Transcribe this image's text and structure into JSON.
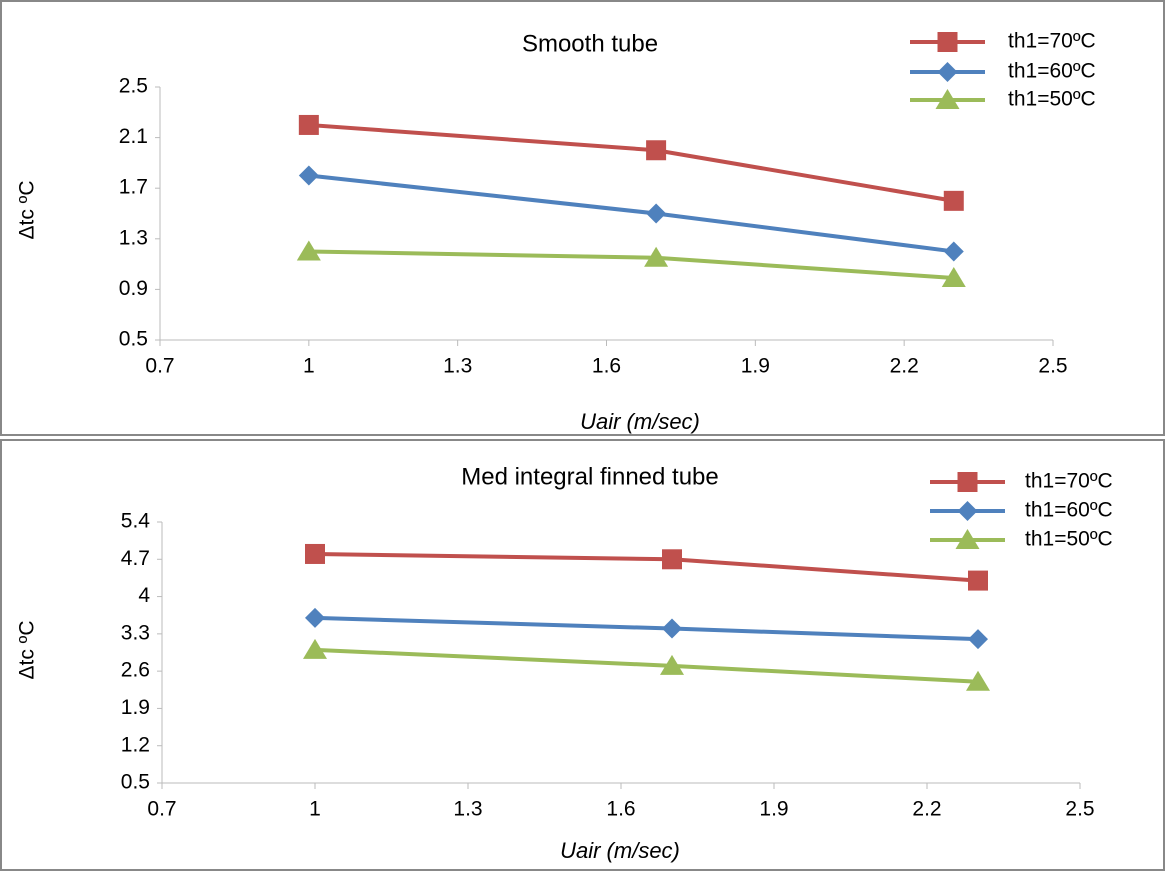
{
  "chart_data": [
    {
      "type": "line",
      "title": "Smooth tube",
      "xlabel": "Uair (m/sec)",
      "ylabel": "Δtc ºC",
      "x": [
        1,
        1.7,
        2.3
      ],
      "series": [
        {
          "name": "th1=70ºC",
          "color": "#c0504d",
          "marker": "square",
          "values": [
            2.2,
            2.0,
            1.6
          ]
        },
        {
          "name": "th1=60ºC",
          "color": "#4f81bd",
          "marker": "diamond",
          "values": [
            1.8,
            1.5,
            1.2
          ]
        },
        {
          "name": "th1=50ºC",
          "color": "#9bbb59",
          "marker": "triangle",
          "values": [
            1.2,
            1.15,
            0.99
          ]
        }
      ],
      "xlim": [
        0.7,
        2.5
      ],
      "xticks": [
        0.7,
        1,
        1.3,
        1.6,
        1.9,
        2.2,
        2.5
      ],
      "ylim": [
        0.5,
        2.5
      ],
      "yticks": [
        0.5,
        0.9,
        1.3,
        1.7,
        2.1,
        2.5
      ],
      "legend": "upper right"
    },
    {
      "type": "line",
      "title": "Med integral finned tube",
      "xlabel": "Uair (m/sec)",
      "ylabel": "Δtc ºC",
      "x": [
        1,
        1.7,
        2.3
      ],
      "series": [
        {
          "name": "th1=70ºC",
          "color": "#c0504d",
          "marker": "square",
          "values": [
            4.8,
            4.7,
            4.3
          ]
        },
        {
          "name": "th1=60ºC",
          "color": "#4f81bd",
          "marker": "diamond",
          "values": [
            3.6,
            3.4,
            3.2
          ]
        },
        {
          "name": "th1=50ºC",
          "color": "#9bbb59",
          "marker": "triangle",
          "values": [
            3.0,
            2.7,
            2.4
          ]
        }
      ],
      "xlim": [
        0.7,
        2.5
      ],
      "xticks": [
        0.7,
        1,
        1.3,
        1.6,
        1.9,
        2.2,
        2.5
      ],
      "ylim": [
        0.5,
        5.4
      ],
      "yticks": [
        0.5,
        1.2,
        1.9,
        2.6,
        3.3,
        4,
        4.7,
        5.4
      ],
      "legend": "upper right"
    }
  ]
}
